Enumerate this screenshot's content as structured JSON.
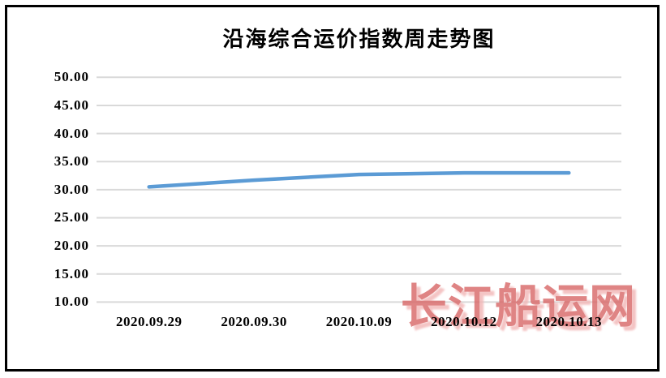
{
  "chart_data": {
    "type": "line",
    "title": "沿海综合运价指数周走势图",
    "categories": [
      "2020.09.29",
      "2020.09.30",
      "2020.10.09",
      "2020.10.12",
      "2020.10.13"
    ],
    "values": [
      30.5,
      31.7,
      32.7,
      33.0,
      33.0
    ],
    "ylim": [
      10,
      50
    ],
    "ytick_step": 5,
    "ytick_labels": [
      "50.00",
      "45.00",
      "40.00",
      "35.00",
      "30.00",
      "25.00",
      "20.00",
      "15.00",
      "10.00"
    ],
    "xlabel": "",
    "ylabel": "",
    "grid": true,
    "legend": false,
    "line_color": "#5b9bd5",
    "gridline_color": "#d9d9d9",
    "title_color": "#000000",
    "frame_color": "#000000"
  },
  "watermark": {
    "text": "长江船运网",
    "color": "#d96a6a"
  }
}
